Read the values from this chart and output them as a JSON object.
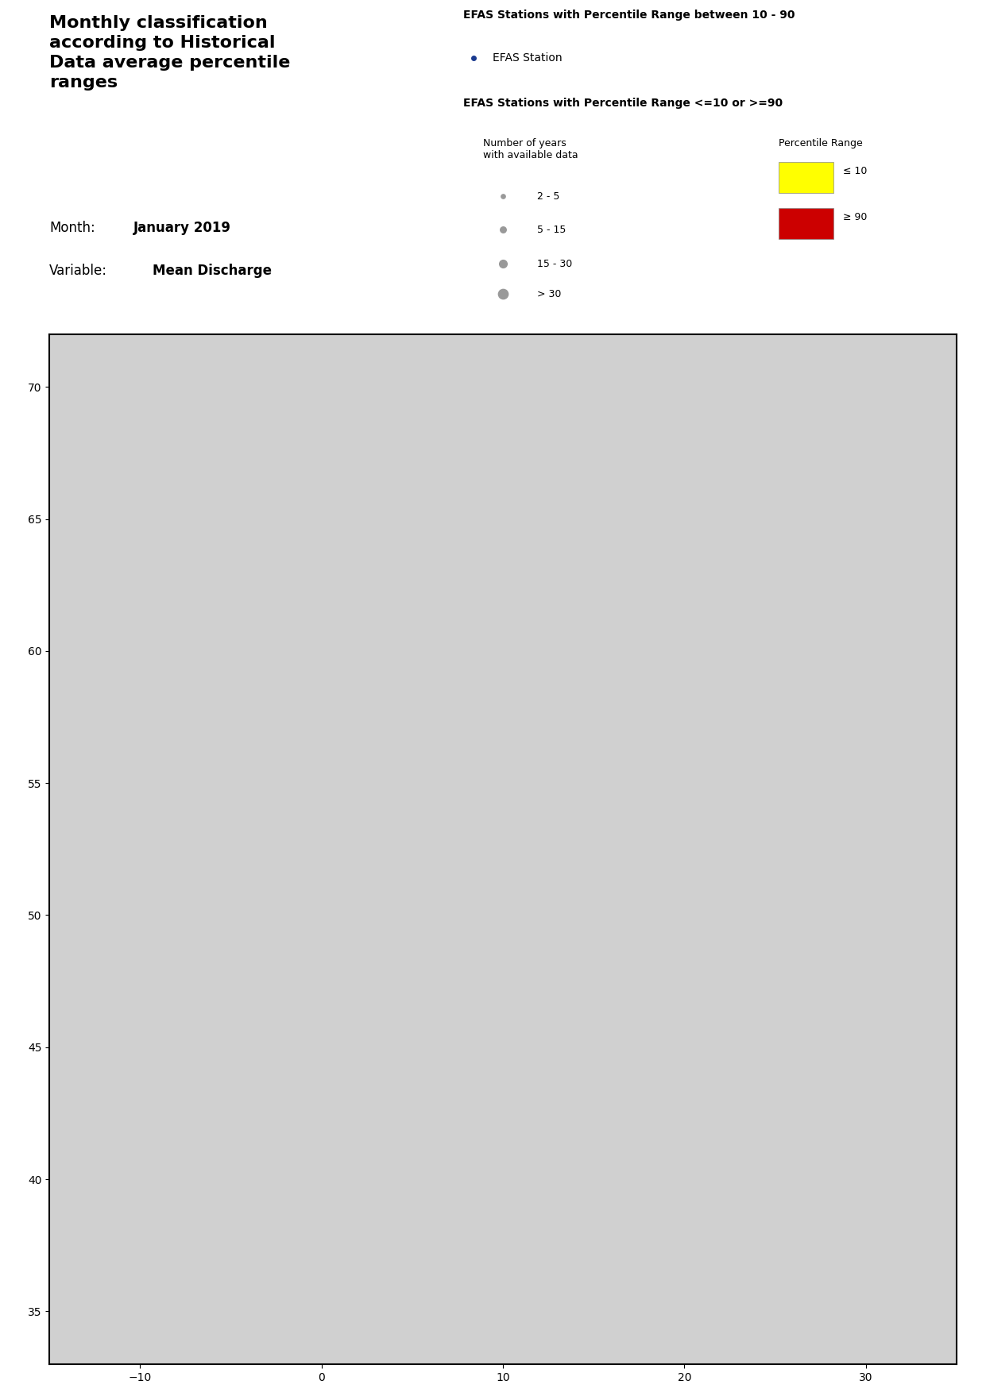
{
  "title_left_lines": [
    "Monthly classification",
    "according to Historical",
    "Data average percentile",
    "ranges"
  ],
  "month_label": "Month:",
  "month_value": "January 2019",
  "variable_label": "Variable:",
  "variable_value": "Mean Discharge",
  "legend_title_10_90": "EFAS Stations with Percentile Range between 10 - 90",
  "legend_item_blue": "EFAS Station",
  "legend_title_extreme": "EFAS Stations with Percentile Range <=10 or >=90",
  "legend_size_title": "Number of years\nwith available data",
  "legend_size_items": [
    "2 - 5",
    "5 - 15",
    "15 - 30",
    "> 30"
  ],
  "legend_percentile_title": "Percentile Range",
  "legend_percentile_items": [
    "≤ 10",
    "≥ 90"
  ],
  "legend_percentile_colors": [
    "#ffff00",
    "#cc0000"
  ],
  "blue_dot_color": "#1a3a8f",
  "blue_dot_size": 3,
  "size_2_5": 30,
  "size_5_15": 60,
  "size_15_30": 100,
  "size_30": 160,
  "gray_color": "#888888",
  "background_color": "#ffffff",
  "map_extent": [
    -15,
    35,
    33,
    72
  ],
  "fig_width": 12.41,
  "fig_height": 17.53
}
